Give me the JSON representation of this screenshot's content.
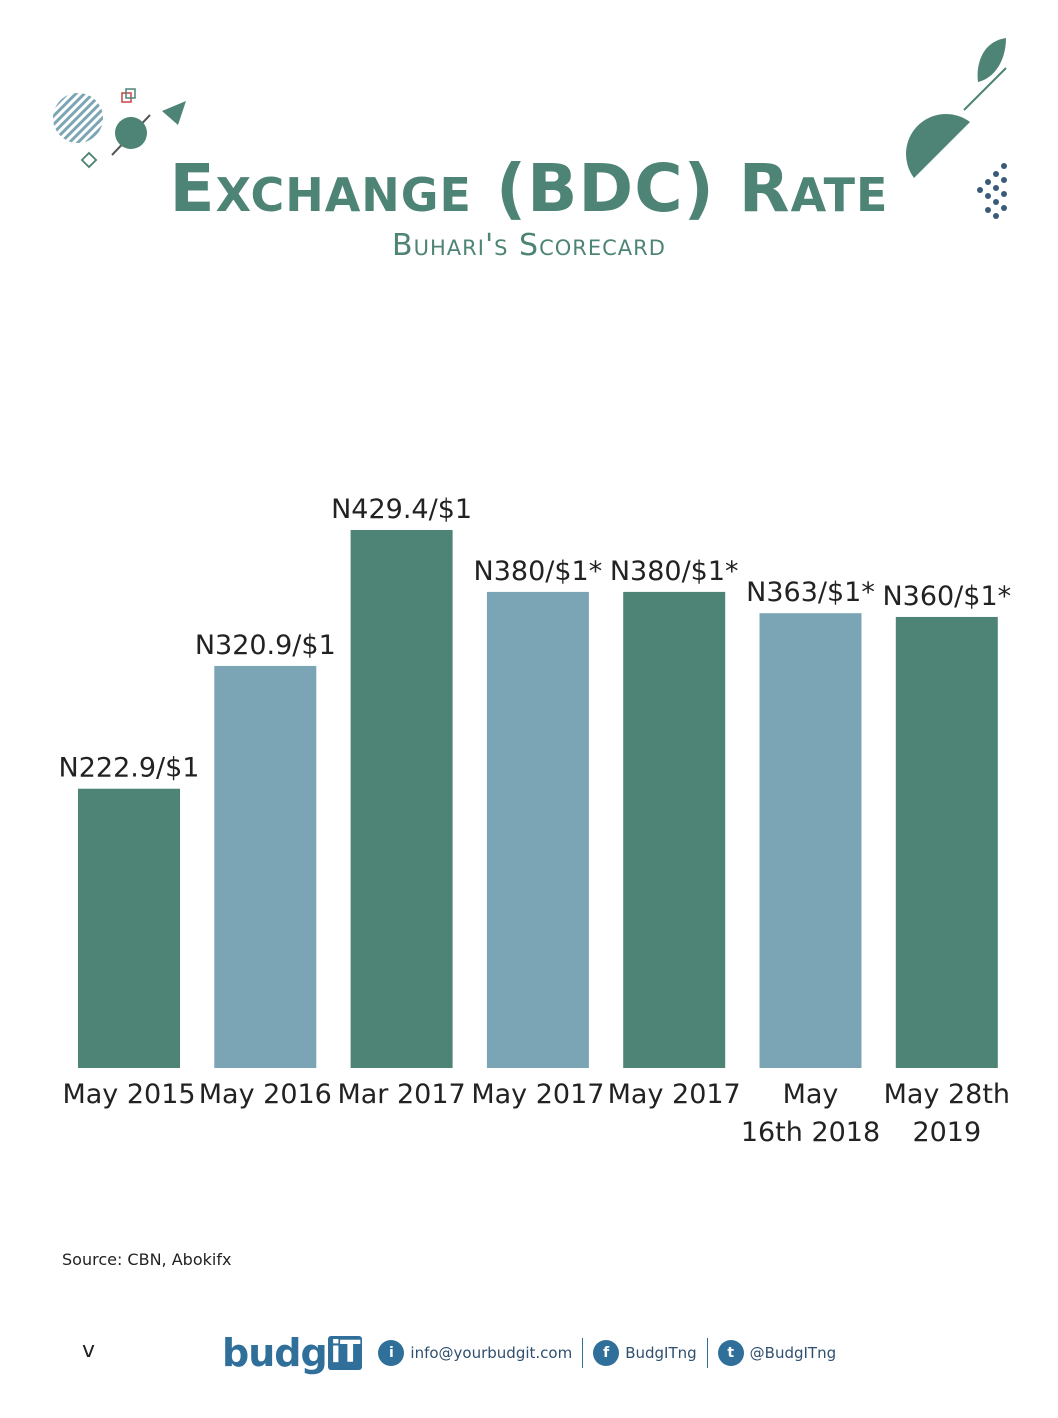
{
  "header": {
    "title": "Exchange (BDC) Rate",
    "subtitle": "Buhari's Scorecard"
  },
  "colors": {
    "accent_green": "#4e8475",
    "accent_blue": "#7ba5b4",
    "brand_blue": "#2f6f9a"
  },
  "chart_data": {
    "type": "bar",
    "categories": [
      [
        "May 2015"
      ],
      [
        "May 2016"
      ],
      [
        "Mar 2017"
      ],
      [
        "May 2017"
      ],
      [
        "May 2017"
      ],
      [
        "May",
        "16th 2018"
      ],
      [
        "May 28th",
        "2019"
      ]
    ],
    "values": [
      222.9,
      320.9,
      429.4,
      380,
      380,
      363,
      360
    ],
    "data_labels": [
      "N222.9/$1",
      "N320.9/$1",
      "N429.4/$1",
      "N380/$1*",
      "N380/$1*",
      "N363/$1*",
      "N360/$1*"
    ],
    "bar_colors": [
      "#4e8475",
      "#7ba5b4",
      "#4e8475",
      "#7ba5b4",
      "#4e8475",
      "#7ba5b4",
      "#4e8475"
    ],
    "ylim": [
      0,
      429.4
    ],
    "grid": false,
    "legend": "none"
  },
  "source": "Source: CBN, Abokifx",
  "footer": {
    "logo_main": "budg",
    "logo_it": "iT",
    "email": "info@yourbudgit.com",
    "facebook": "BudgITng",
    "twitter": "@BudgITng",
    "email_icon_glyph": "i",
    "facebook_icon_glyph": "f",
    "twitter_icon_glyph": "t",
    "chevron": "v"
  }
}
